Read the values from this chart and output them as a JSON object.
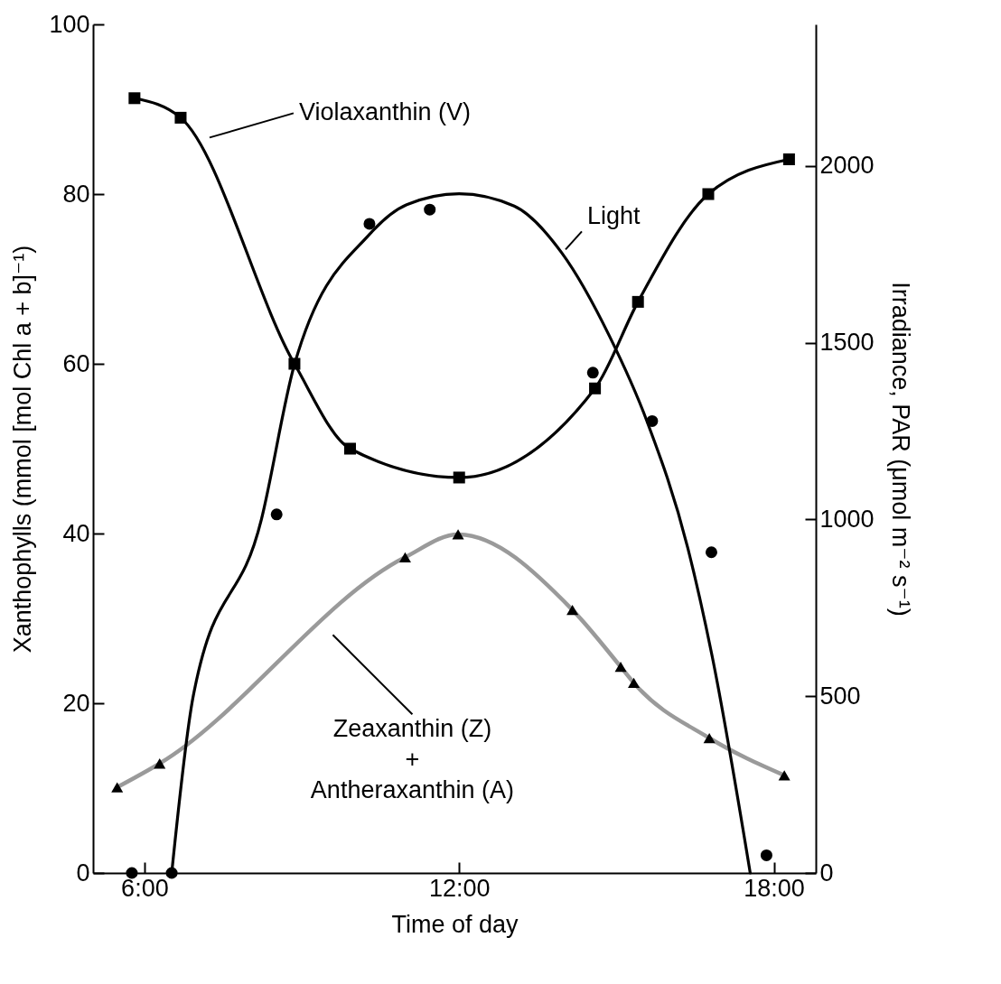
{
  "chart_data": {
    "type": "line",
    "xlabel": "Time of day",
    "ylabel": "Xanthophylls (mmol [mol Chl a + b]⁻¹)",
    "y2label": "Irradiance, PAR (μmol m⁻² s⁻¹)",
    "xlim": [
      5.02,
      18.8
    ],
    "xticks": [
      {
        "value": 6,
        "label": "6:00"
      },
      {
        "value": 12,
        "label": "12:00"
      },
      {
        "value": 18,
        "label": "18:00"
      }
    ],
    "ylim": [
      0,
      100
    ],
    "yticks": [
      0,
      20,
      40,
      60,
      80,
      100
    ],
    "y2lim": [
      0,
      2400
    ],
    "y2ticks": [
      0,
      500,
      1000,
      1500,
      2000
    ],
    "series": [
      {
        "name": "Violaxanthin (V)",
        "color": "#000000",
        "marker": "square",
        "x": [
          5.81,
          6.69,
          8.86,
          9.92,
          12.0,
          14.59,
          15.41,
          16.75,
          18.29
        ],
        "values": [
          91.3,
          89.0,
          60.0,
          50.0,
          46.6,
          57.1,
          67.3,
          80.0,
          84.1
        ]
      },
      {
        "name": "Zeaxanthin (Z)\n+\nAntheraxanthin (A)",
        "color": "#9a9a9a",
        "marker": "none",
        "x": [
          5.48,
          6.29,
          10.97,
          11.98,
          14.16,
          15.08,
          15.33,
          16.77,
          18.2
        ],
        "values": [
          10.1,
          12.9,
          37.2,
          39.9,
          31.0,
          24.3,
          22.4,
          15.9,
          11.5
        ]
      },
      {
        "type": "scatter",
        "color": "#000000",
        "marker": "triangle",
        "x": [
          5.48,
          6.29,
          10.97,
          11.98,
          14.16,
          15.08,
          15.33,
          16.77,
          18.2
        ],
        "values": [
          10.1,
          12.9,
          37.2,
          39.9,
          31.0,
          24.3,
          22.4,
          15.9,
          11.5
        ]
      },
      {
        "name": "Light",
        "color": "#000000",
        "marker": "none",
        "axis": "y2",
        "x": [
          6.52,
          6.93,
          8.23,
          8.86,
          10.29,
          11.0,
          12.0,
          13.05,
          13.96,
          14.86,
          15.58,
          16.36,
          16.82,
          17.55
        ],
        "values": [
          0,
          500,
          1000,
          1438,
          1806,
          1890,
          1921,
          1886,
          1753,
          1520,
          1278,
          919,
          616,
          0
        ]
      },
      {
        "type": "scatter",
        "color": "#000000",
        "marker": "circle",
        "axis": "y2",
        "x": [
          5.76,
          6.52,
          8.52,
          10.29,
          11.44,
          14.55,
          15.68,
          16.81,
          17.86
        ],
        "values": [
          0,
          0,
          1014,
          1836,
          1876,
          1415,
          1278,
          907,
          50
        ]
      }
    ]
  }
}
